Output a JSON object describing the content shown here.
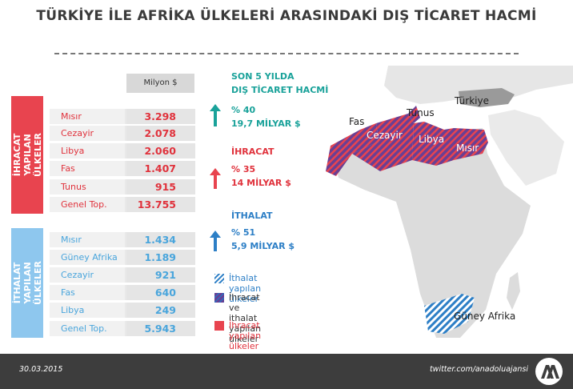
{
  "title": "TÜRKİYE İLE AFRİKA ÜLKELERİ ARASINDAKİ DIŞ TİCARET HACMİ",
  "chart_data": {
    "type": "table",
    "unit": "Milyon $",
    "export_label": "İHRACAT YAPILAN\nÜLKELER",
    "import_label": "İTHALAT YAPILAN\nÜLKELER",
    "exports": [
      {
        "country": "Mısır",
        "value": "3.298"
      },
      {
        "country": "Cezayir",
        "value": "2.078"
      },
      {
        "country": "Libya",
        "value": "2.060"
      },
      {
        "country": "Fas",
        "value": "1.407"
      },
      {
        "country": "Tunus",
        "value": "915"
      },
      {
        "country": "Genel Top.",
        "value": "13.755"
      }
    ],
    "imports": [
      {
        "country": "Mısır",
        "value": "1.434"
      },
      {
        "country": "Güney Afrika",
        "value": "1.189"
      },
      {
        "country": "Cezayir",
        "value": "921"
      },
      {
        "country": "Fas",
        "value": "640"
      },
      {
        "country": "Libya",
        "value": "249"
      },
      {
        "country": "Genel Top.",
        "value": "5.943"
      }
    ]
  },
  "stats": [
    {
      "lines": [
        "SON 5 YILDA",
        "DIŞ TİCARET HACMİ",
        "% 40",
        "19,7 MİLYAR $"
      ]
    },
    {
      "lines": [
        "İHRACAT",
        "% 35",
        "14 MİLYAR $"
      ]
    },
    {
      "lines": [
        "İTHALAT",
        "% 51",
        "5,9 MİLYAR $"
      ]
    }
  ],
  "map_labels": {
    "turkiye": "Türkiye",
    "tunus": "Tunus",
    "fas": "Fas",
    "cezayir": "Cezayir",
    "libya": "Libya",
    "misir": "Mısır",
    "guney_afrika": "Güney Afrika"
  },
  "legend": [
    {
      "label": "İthalat yapılan ülkeler"
    },
    {
      "label": "İhracat ve ithalat yapılan\nülkeler"
    },
    {
      "label": "İhracat yapılan ülkeler"
    }
  ],
  "footer": {
    "date": "30.03.2015",
    "source": "twitter.com/anadoluajansi"
  },
  "colors": {
    "export_red": "#e8444f",
    "import_blue": "#8ec7ee",
    "teal": "#1aa29a",
    "stripe_purple": "#6a3f93",
    "dark_blue": "#2d7fc6"
  }
}
